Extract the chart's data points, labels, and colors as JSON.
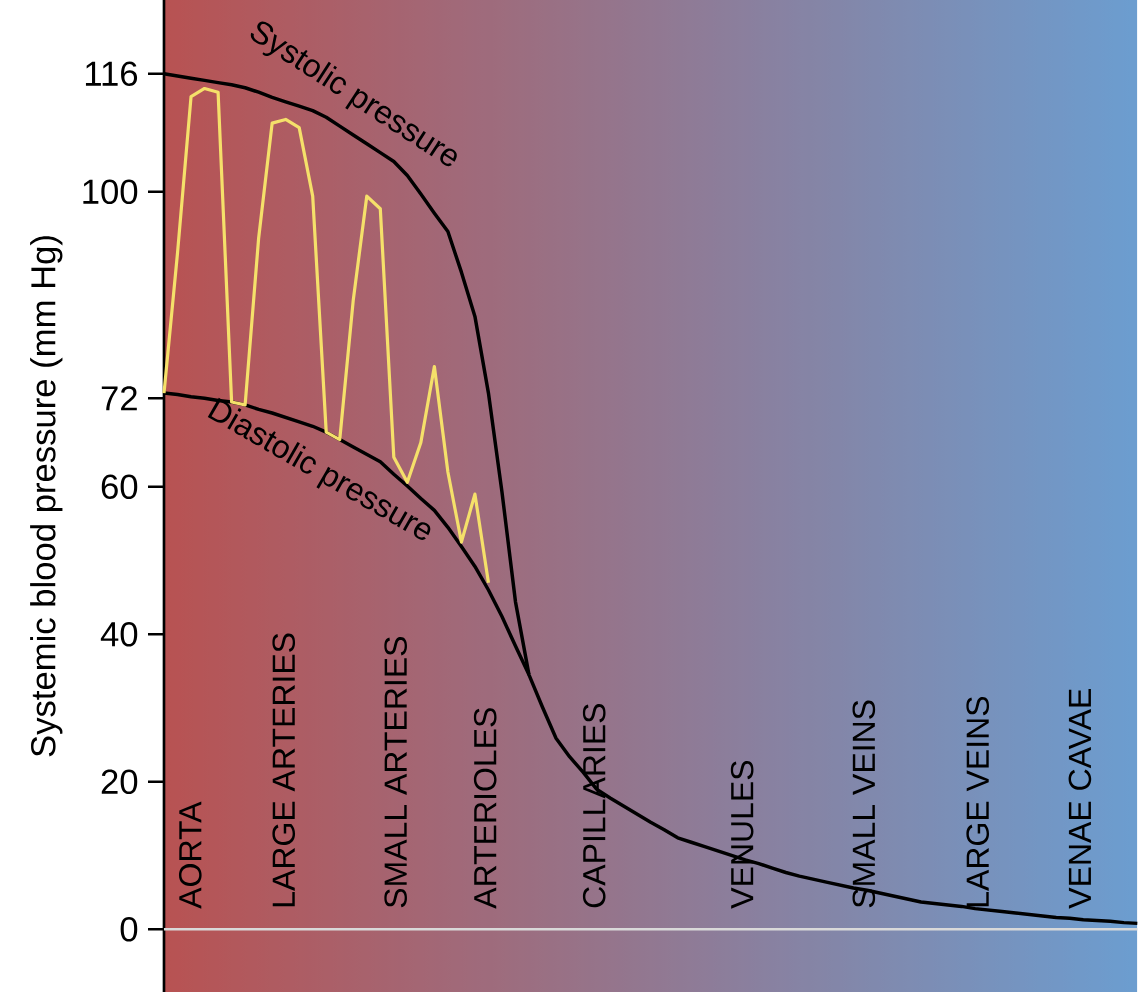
{
  "chart_data": {
    "type": "line",
    "ylabel": "Systemic blood pressure (mm Hg)",
    "categories": [
      null,
      null,
      null,
      null,
      null,
      null,
      null,
      null,
      null,
      null,
      null,
      null,
      null,
      null,
      null,
      null,
      null,
      null,
      null,
      null,
      null,
      null,
      null,
      null,
      null,
      null,
      null,
      null,
      null,
      null,
      null,
      null,
      null,
      null,
      null,
      null,
      null,
      null,
      null,
      null,
      null,
      null,
      null,
      null,
      null,
      null,
      null,
      null,
      null,
      null,
      null,
      null,
      null,
      null,
      null,
      null,
      null,
      null,
      null,
      null,
      null,
      null,
      null,
      null,
      null,
      null,
      null,
      null,
      null,
      null,
      null,
      null,
      null
    ],
    "ylim": [
      -8.5,
      126
    ],
    "yticks": [
      0,
      20,
      40,
      60,
      72,
      100,
      116
    ],
    "tick_labels": "y",
    "ref_lines": [
      {
        "axis": "y",
        "value": 0,
        "color": "#d9d9d9"
      }
    ],
    "series": [
      {
        "color": "#000000",
        "values": [
          116,
          115.7,
          115.4,
          115.1,
          114.8,
          114.5,
          114.1,
          113.5,
          112.8,
          112.2,
          111.6,
          111.0,
          110.1,
          108.9,
          107.7,
          106.5,
          105.3,
          104.1,
          102.2,
          99.7,
          97.1,
          94.6,
          89.1,
          83.1,
          72.7,
          59.3,
          44.4,
          34.5,
          30.1,
          25.9,
          23.4,
          21.3,
          19.0,
          17.8,
          16.7,
          15.6,
          14.5,
          13.5,
          12.4,
          11.8,
          11.2,
          10.6,
          10.0,
          9.4,
          8.9,
          8.3,
          7.7,
          7.2,
          6.8,
          6.4,
          6.0,
          5.6,
          5.3,
          4.9,
          4.5,
          4.1,
          3.7,
          3.5,
          3.3,
          3.1,
          2.8,
          2.6,
          2.4,
          2.2,
          2.0,
          1.8,
          1.6,
          1.5,
          1.3,
          1.2,
          1.1,
          0.9,
          0.8
        ]
      },
      {
        "color": "#000000",
        "values": [
          72.7,
          72.5,
          72.2,
          72.0,
          71.7,
          71.5,
          71.1,
          70.5,
          70.0,
          69.4,
          68.8,
          68.2,
          67.4,
          66.4,
          65.4,
          64.4,
          63.4,
          61.7,
          60.1,
          58.4,
          56.8,
          54.5,
          51.9,
          49.2,
          46.0,
          42.4,
          38.4,
          34.5,
          null,
          null,
          null,
          null,
          null,
          null,
          null,
          null,
          null,
          null,
          null,
          null,
          null,
          null,
          null,
          null,
          null,
          null,
          null,
          null,
          null,
          null,
          null,
          null,
          null,
          null,
          null,
          null,
          null,
          null,
          null,
          null,
          null,
          null,
          null,
          null,
          null,
          null,
          null,
          null,
          null,
          null,
          null,
          null,
          null
        ]
      },
      {
        "color": "#f5e06a",
        "values": [
          72.7,
          91.7,
          112.9,
          114.0,
          113.5,
          71.5,
          71.1,
          93.7,
          109.3,
          109.8,
          108.7,
          99.4,
          67.4,
          66.4,
          85.3,
          99.4,
          97.7,
          64,
          60.6,
          66,
          76.3,
          62,
          52.5,
          59,
          47,
          null,
          null,
          null,
          null,
          null,
          null,
          null,
          null,
          null,
          null,
          null,
          null,
          null,
          null,
          null,
          null,
          null,
          null,
          null,
          null,
          null,
          null,
          null,
          null,
          null,
          null,
          null,
          null,
          null,
          null,
          null,
          null,
          null,
          null,
          null,
          null,
          null,
          null,
          null,
          null,
          null,
          null,
          null,
          null,
          null,
          null,
          null,
          null
        ]
      }
    ],
    "annotations": [
      "Systolic pressure",
      "Diastolic pressure",
      "AORTA",
      "LARGE ARTERIES",
      "SMALL ARTERIES",
      "ARTERIOLES",
      "CAPILLARIES",
      "VENULES",
      "SMALL VEINS",
      "LARGE VEINS",
      "VENAE CAVAE"
    ]
  }
}
